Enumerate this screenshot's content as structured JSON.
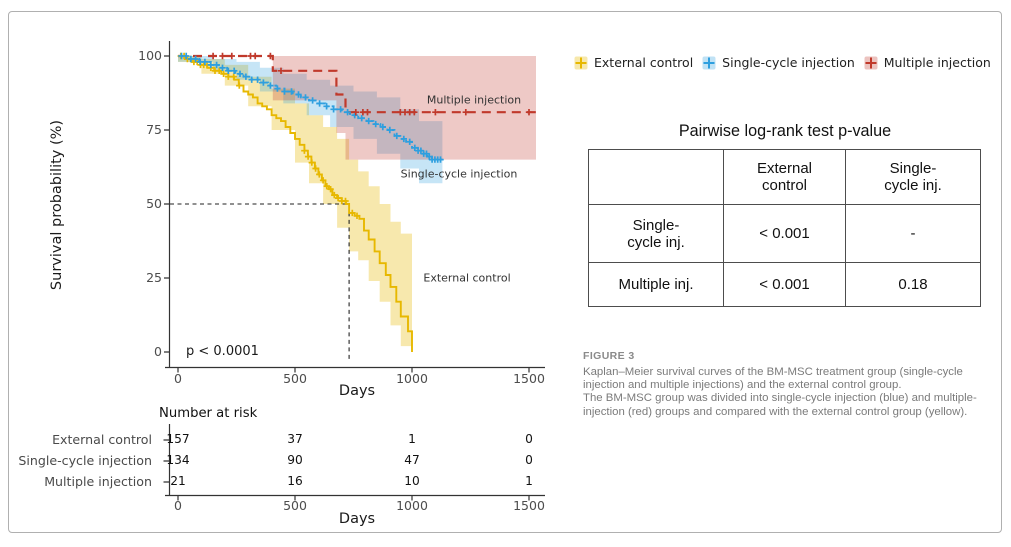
{
  "figure": {
    "colors": {
      "external": "#E7B800",
      "single": "#2E9FDF",
      "multiple": "#C0392B",
      "axis": "#333333",
      "tick_text": "#4d4d4d",
      "caption_text": "#7b7b7b"
    },
    "plot": {
      "y_axis_label": "Survival probability (%)",
      "x_axis_label": "Days",
      "y_ticks": [
        "100",
        "75",
        "50",
        "25",
        "0"
      ],
      "x_ticks": [
        "0",
        "500",
        "1000",
        "1500"
      ],
      "p_value_text": "p < 0.0001",
      "curve_labels": {
        "multiple": "Multiple injection",
        "single": "Single-cycle injection",
        "external": "External control"
      }
    },
    "legend": {
      "items": [
        {
          "label": "External control"
        },
        {
          "label": "Single-cycle injection"
        },
        {
          "label": "Multiple injection"
        }
      ]
    },
    "pairwise_table": {
      "title": "Pairwise log-rank test p-value",
      "col_headers": [
        "External\ncontrol",
        "Single-\ncycle inj."
      ],
      "rows": [
        {
          "label": "Single-\ncycle inj.",
          "values": [
            "< 0.001",
            "-"
          ]
        },
        {
          "label": "Multiple inj.",
          "values": [
            "< 0.001",
            "0.18"
          ]
        }
      ]
    },
    "risk_table": {
      "title": "Number at risk",
      "x_label": "Days",
      "x_ticks": [
        "0",
        "500",
        "1000",
        "1500"
      ],
      "rows": [
        {
          "label": "External control",
          "values": [
            "157",
            "37",
            "1",
            "0"
          ]
        },
        {
          "label": "Single-cycle injection",
          "values": [
            "134",
            "90",
            "47",
            "0"
          ]
        },
        {
          "label": "Multiple injection",
          "values": [
            "21",
            "16",
            "10",
            "1"
          ]
        }
      ]
    },
    "caption": {
      "tag": "FIGURE 3",
      "paragraphs": [
        "Kaplan–Meier survival curves of the BM-MSC treatment group (single-cycle injection and multiple injections) and the external control group.",
        "The BM-MSC group was divided into single-cycle injection (blue) and multiple-injection (red) groups and compared with the external control group (yellow)."
      ]
    },
    "chart_data": {
      "type": "line",
      "subtype": "kaplan-meier-step",
      "title": "",
      "xlabel": "Days",
      "ylabel": "Survival probability (%)",
      "xlim": [
        0,
        1500
      ],
      "ylim": [
        0,
        100
      ],
      "x_tick_values": [
        0,
        500,
        1000,
        1500
      ],
      "y_tick_values": [
        0,
        25,
        50,
        75,
        100
      ],
      "p_value": "p < 0.0001",
      "median_reference": {
        "day": 731,
        "pct": 50
      },
      "legend_position": "top-right-outside",
      "series": [
        {
          "name": "External control",
          "color": "#E7B800",
          "line_style": "solid",
          "steps": [
            [
              0,
              100
            ],
            [
              30,
              99
            ],
            [
              60,
              98
            ],
            [
              95,
              97
            ],
            [
              125,
              96
            ],
            [
              155,
              95
            ],
            [
              185,
              94
            ],
            [
              215,
              93
            ],
            [
              240,
              92
            ],
            [
              260,
              90
            ],
            [
              280,
              88
            ],
            [
              300,
              87
            ],
            [
              320,
              86
            ],
            [
              340,
              84
            ],
            [
              360,
              83
            ],
            [
              380,
              82
            ],
            [
              400,
              80
            ],
            [
              420,
              79
            ],
            [
              440,
              78
            ],
            [
              460,
              76
            ],
            [
              480,
              74
            ],
            [
              500,
              72
            ],
            [
              520,
              70
            ],
            [
              540,
              68
            ],
            [
              555,
              66
            ],
            [
              570,
              64
            ],
            [
              585,
              62
            ],
            [
              600,
              60
            ],
            [
              615,
              58
            ],
            [
              630,
              56
            ],
            [
              645,
              55
            ],
            [
              660,
              53
            ],
            [
              680,
              52
            ],
            [
              700,
              51
            ],
            [
              718,
              50
            ],
            [
              731,
              47
            ],
            [
              755,
              46
            ],
            [
              775,
              45
            ],
            [
              795,
              41
            ],
            [
              815,
              38
            ],
            [
              840,
              34
            ],
            [
              862,
              30
            ],
            [
              888,
              26
            ],
            [
              908,
              22
            ],
            [
              933,
              17
            ],
            [
              952,
              12
            ],
            [
              983,
              7
            ],
            [
              1000,
              0
            ]
          ],
          "ci_upper": [
            [
              0,
              100
            ],
            [
              100,
              99
            ],
            [
              200,
              97
            ],
            [
              300,
              93
            ],
            [
              400,
              89
            ],
            [
              500,
              84
            ],
            [
              560,
              80
            ],
            [
              620,
              76
            ],
            [
              680,
              72
            ],
            [
              731,
              65
            ],
            [
              770,
              61
            ],
            [
              815,
              56
            ],
            [
              862,
              50
            ],
            [
              908,
              44
            ],
            [
              952,
              40
            ],
            [
              1000,
              36
            ]
          ],
          "ci_lower": [
            [
              0,
              98
            ],
            [
              100,
              94
            ],
            [
              200,
              90
            ],
            [
              300,
              83
            ],
            [
              400,
              75
            ],
            [
              500,
              64
            ],
            [
              560,
              57
            ],
            [
              620,
              50
            ],
            [
              680,
              42
            ],
            [
              731,
              34
            ],
            [
              770,
              31
            ],
            [
              815,
              24
            ],
            [
              862,
              17
            ],
            [
              908,
              9
            ],
            [
              952,
              2
            ],
            [
              1000,
              0
            ]
          ],
          "censor_days": [
            12,
            26,
            40,
            54,
            68,
            82,
            96,
            110,
            124,
            140,
            158,
            176,
            195,
            215,
            238,
            262,
            540,
            556,
            572,
            588,
            604,
            620,
            636,
            652,
            668,
            684,
            700,
            716,
            745,
            765
          ]
        },
        {
          "name": "Single-cycle injection",
          "color": "#2E9FDF",
          "line_style": "dashed-short",
          "steps": [
            [
              0,
              100
            ],
            [
              40,
              99
            ],
            [
              90,
              98
            ],
            [
              140,
              97
            ],
            [
              175,
              96
            ],
            [
              210,
              95
            ],
            [
              245,
              94
            ],
            [
              280,
              93
            ],
            [
              315,
              92
            ],
            [
              350,
              91
            ],
            [
              385,
              90
            ],
            [
              420,
              89
            ],
            [
              455,
              88
            ],
            [
              490,
              87
            ],
            [
              525,
              86
            ],
            [
              560,
              85
            ],
            [
              595,
              84
            ],
            [
              630,
              83
            ],
            [
              665,
              82
            ],
            [
              700,
              81
            ],
            [
              735,
              80
            ],
            [
              770,
              79
            ],
            [
              805,
              78
            ],
            [
              835,
              77
            ],
            [
              865,
              76
            ],
            [
              895,
              75
            ],
            [
              925,
              73
            ],
            [
              950,
              72
            ],
            [
              975,
              71
            ],
            [
              1000,
              69
            ],
            [
              1025,
              68
            ],
            [
              1045,
              67
            ],
            [
              1065,
              66
            ],
            [
              1085,
              65
            ],
            [
              1130,
              65
            ]
          ],
          "ci_upper": [
            [
              0,
              100
            ],
            [
              150,
              99
            ],
            [
              250,
              98
            ],
            [
              350,
              96
            ],
            [
              450,
              94
            ],
            [
              550,
              92
            ],
            [
              650,
              90
            ],
            [
              750,
              88
            ],
            [
              850,
              86
            ],
            [
              950,
              82
            ],
            [
              1030,
              78
            ],
            [
              1130,
              74
            ]
          ],
          "ci_lower": [
            [
              0,
              98
            ],
            [
              150,
              95
            ],
            [
              250,
              92
            ],
            [
              350,
              88
            ],
            [
              450,
              84
            ],
            [
              550,
              80
            ],
            [
              650,
              76
            ],
            [
              750,
              72
            ],
            [
              850,
              67
            ],
            [
              950,
              62
            ],
            [
              1030,
              57
            ],
            [
              1130,
              55
            ]
          ],
          "censor_days": [
            15,
            35,
            55,
            75,
            95,
            115,
            140,
            165,
            190,
            215,
            240,
            265,
            290,
            315,
            340,
            365,
            395,
            425,
            455,
            485,
            515,
            545,
            575,
            605,
            635,
            665,
            695,
            725,
            755,
            785,
            815,
            845,
            875,
            905,
            935,
            965,
            990,
            1012,
            1026,
            1038,
            1050,
            1062,
            1074,
            1086,
            1098,
            1110,
            1122
          ]
        },
        {
          "name": "Multiple injection",
          "color": "#C0392B",
          "line_style": "dashed-long",
          "steps": [
            [
              0,
              100
            ],
            [
              405,
              95
            ],
            [
              677,
              87
            ],
            [
              716,
              81
            ],
            [
              1530,
              81
            ]
          ],
          "ci_upper": [
            [
              405,
              100
            ],
            [
              1530,
              100
            ]
          ],
          "ci_lower": [
            [
              405,
              85
            ],
            [
              677,
              74
            ],
            [
              716,
              65
            ],
            [
              1530,
              65
            ]
          ],
          "censor_days": [
            150,
            190,
            230,
            310,
            330,
            395,
            440,
            760,
            790,
            810,
            950,
            970,
            990,
            1010,
            1100,
            1230,
            1500
          ]
        }
      ]
    }
  }
}
